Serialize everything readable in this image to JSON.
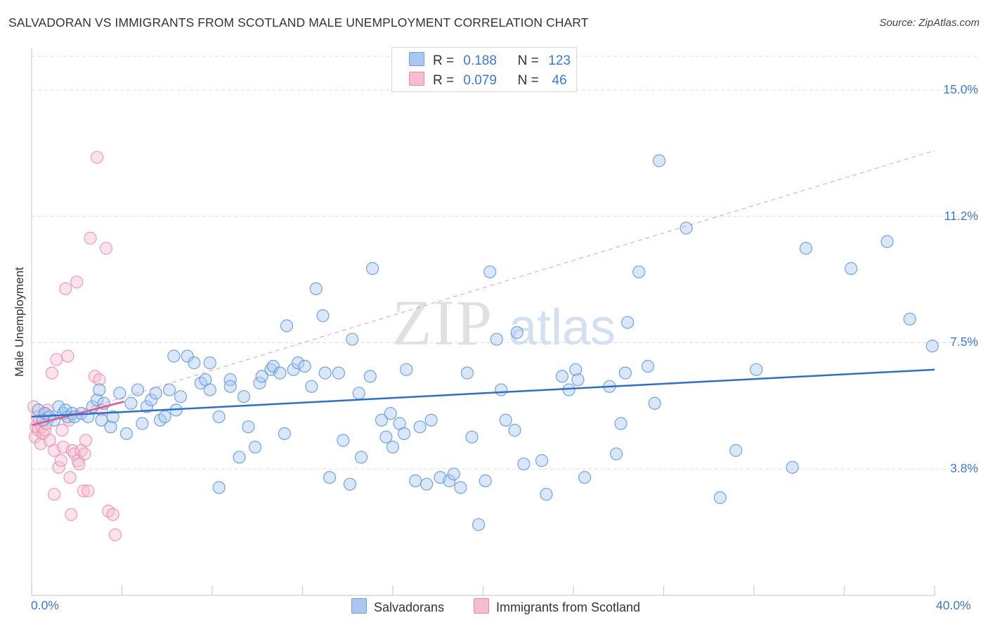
{
  "title": "SALVADORAN VS IMMIGRANTS FROM SCOTLAND MALE UNEMPLOYMENT CORRELATION CHART",
  "source": "Source: ZipAtlas.com",
  "watermark": {
    "zip": "ZIP",
    "atlas": "atlas"
  },
  "legend": {
    "rows": [
      {
        "r_label": "R =",
        "r_value": "0.188",
        "n_label": "N =",
        "n_value": "123",
        "color": "#a8c8f0",
        "border": "#6a9ee0"
      },
      {
        "r_label": "R =",
        "r_value": "0.079",
        "n_label": "N =",
        "n_value": "46",
        "color": "#f6bcd0",
        "border": "#e88aaa"
      }
    ]
  },
  "bottom_legend": {
    "salvadorans": "Salvadorans",
    "scotland": "Immigrants from Scotland"
  },
  "colors": {
    "blue_fill": "#aac9f1",
    "blue_stroke": "#5b95df",
    "blue_line": "#2d6fd0",
    "pink_fill": "#f7bfd2",
    "pink_stroke": "#e887a8",
    "pink_line": "#e0578a",
    "axis_text": "#3a79d8",
    "grid": "#dcdcdc"
  },
  "chart_data": {
    "type": "scatter",
    "title": "SALVADORAN VS IMMIGRANTS FROM SCOTLAND MALE UNEMPLOYMENT CORRELATION CHART",
    "xlabel": "",
    "ylabel": "Male Unemployment",
    "xlim": [
      0,
      40
    ],
    "ylim": [
      0,
      16.0
    ],
    "x_tick_labels": {
      "min": "0.0%",
      "max": "40.0%"
    },
    "y_ticks": [
      {
        "value": 3.75,
        "label": "3.8%"
      },
      {
        "value": 7.5,
        "label": "7.5%"
      },
      {
        "value": 11.25,
        "label": "11.2%"
      },
      {
        "value": 15.0,
        "label": "15.0%"
      }
    ],
    "grid": true,
    "series": [
      {
        "name": "Salvadorans",
        "R": 0.188,
        "N": 123,
        "trend": {
          "x": [
            0,
            40
          ],
          "y": [
            5.3,
            6.7
          ],
          "style": "solid"
        },
        "points": [
          [
            0.3,
            5.5
          ],
          [
            0.5,
            5.2
          ],
          [
            0.6,
            5.4
          ],
          [
            0.8,
            5.3
          ],
          [
            1.0,
            5.2
          ],
          [
            1.2,
            5.6
          ],
          [
            1.4,
            5.4
          ],
          [
            1.5,
            5.5
          ],
          [
            1.6,
            5.3
          ],
          [
            1.8,
            5.4
          ],
          [
            1.9,
            5.3
          ],
          [
            2.2,
            5.4
          ],
          [
            2.5,
            5.3
          ],
          [
            2.7,
            5.6
          ],
          [
            2.9,
            5.8
          ],
          [
            3.0,
            6.1
          ],
          [
            3.2,
            5.7
          ],
          [
            3.1,
            5.2
          ],
          [
            3.5,
            5.0
          ],
          [
            3.6,
            5.3
          ],
          [
            3.9,
            6.0
          ],
          [
            4.2,
            4.8
          ],
          [
            4.4,
            5.7
          ],
          [
            4.7,
            6.1
          ],
          [
            4.9,
            5.1
          ],
          [
            5.1,
            5.6
          ],
          [
            5.3,
            5.8
          ],
          [
            5.5,
            6.0
          ],
          [
            5.7,
            5.2
          ],
          [
            5.9,
            5.3
          ],
          [
            6.1,
            6.1
          ],
          [
            6.4,
            5.5
          ],
          [
            6.6,
            5.9
          ],
          [
            6.3,
            7.1
          ],
          [
            6.9,
            7.1
          ],
          [
            7.2,
            6.9
          ],
          [
            7.5,
            6.3
          ],
          [
            7.7,
            6.4
          ],
          [
            7.9,
            6.1
          ],
          [
            7.9,
            6.9
          ],
          [
            8.3,
            5.3
          ],
          [
            8.3,
            3.2
          ],
          [
            8.8,
            6.4
          ],
          [
            8.8,
            6.2
          ],
          [
            9.2,
            4.1
          ],
          [
            9.4,
            5.9
          ],
          [
            9.6,
            5.0
          ],
          [
            9.9,
            4.4
          ],
          [
            10.1,
            6.3
          ],
          [
            10.2,
            6.5
          ],
          [
            10.6,
            6.7
          ],
          [
            10.7,
            6.8
          ],
          [
            11.0,
            6.6
          ],
          [
            11.2,
            4.8
          ],
          [
            11.3,
            8.0
          ],
          [
            11.6,
            6.7
          ],
          [
            11.8,
            6.9
          ],
          [
            12.1,
            6.8
          ],
          [
            12.4,
            6.2
          ],
          [
            12.6,
            9.1
          ],
          [
            12.9,
            8.3
          ],
          [
            13.0,
            6.6
          ],
          [
            13.2,
            3.5
          ],
          [
            13.6,
            6.6
          ],
          [
            13.8,
            4.6
          ],
          [
            14.1,
            3.3
          ],
          [
            14.2,
            7.6
          ],
          [
            14.5,
            6.0
          ],
          [
            14.6,
            4.1
          ],
          [
            15.0,
            6.5
          ],
          [
            15.1,
            9.7
          ],
          [
            15.5,
            5.2
          ],
          [
            15.7,
            4.7
          ],
          [
            15.9,
            5.4
          ],
          [
            16.0,
            4.4
          ],
          [
            16.3,
            5.1
          ],
          [
            16.5,
            4.8
          ],
          [
            16.6,
            6.7
          ],
          [
            17.0,
            3.4
          ],
          [
            17.2,
            5.0
          ],
          [
            17.5,
            3.3
          ],
          [
            17.7,
            5.2
          ],
          [
            18.1,
            3.5
          ],
          [
            18.5,
            3.4
          ],
          [
            18.7,
            3.6
          ],
          [
            19.0,
            3.2
          ],
          [
            19.3,
            6.6
          ],
          [
            19.5,
            4.7
          ],
          [
            19.8,
            2.1
          ],
          [
            20.1,
            3.4
          ],
          [
            20.3,
            9.6
          ],
          [
            20.6,
            7.6
          ],
          [
            20.8,
            6.1
          ],
          [
            21.0,
            5.2
          ],
          [
            21.4,
            4.9
          ],
          [
            21.5,
            7.8
          ],
          [
            21.8,
            3.9
          ],
          [
            22.6,
            4.0
          ],
          [
            22.8,
            3.0
          ],
          [
            23.5,
            6.5
          ],
          [
            23.8,
            6.1
          ],
          [
            24.1,
            6.7
          ],
          [
            24.2,
            6.4
          ],
          [
            24.5,
            3.5
          ],
          [
            25.6,
            6.2
          ],
          [
            25.9,
            4.2
          ],
          [
            26.1,
            5.1
          ],
          [
            26.3,
            6.6
          ],
          [
            26.4,
            8.1
          ],
          [
            26.9,
            9.6
          ],
          [
            27.3,
            6.8
          ],
          [
            27.6,
            5.7
          ],
          [
            27.8,
            12.9
          ],
          [
            29.0,
            10.9
          ],
          [
            30.5,
            2.9
          ],
          [
            31.2,
            4.3
          ],
          [
            32.1,
            6.7
          ],
          [
            33.7,
            3.8
          ],
          [
            34.3,
            10.3
          ],
          [
            36.3,
            9.7
          ],
          [
            37.9,
            10.5
          ],
          [
            38.9,
            8.2
          ],
          [
            39.9,
            7.4
          ]
        ]
      },
      {
        "name": "Immigrants from Scotland",
        "R": 0.079,
        "N": 46,
        "trend": {
          "x": [
            0,
            4.1
          ],
          "y": [
            5.05,
            5.75
          ],
          "style": "solid"
        },
        "trend_extended": {
          "x": [
            0,
            40
          ],
          "y": [
            5.05,
            13.2
          ],
          "style": "dashed"
        },
        "points": [
          [
            0.1,
            5.6
          ],
          [
            0.15,
            4.7
          ],
          [
            0.2,
            5.0
          ],
          [
            0.25,
            5.3
          ],
          [
            0.3,
            4.9
          ],
          [
            0.35,
            5.2
          ],
          [
            0.4,
            4.5
          ],
          [
            0.45,
            5.0
          ],
          [
            0.5,
            4.8
          ],
          [
            0.55,
            5.4
          ],
          [
            0.6,
            4.9
          ],
          [
            0.65,
            5.1
          ],
          [
            0.7,
            5.5
          ],
          [
            0.8,
            4.6
          ],
          [
            0.9,
            6.6
          ],
          [
            1.0,
            4.3
          ],
          [
            1.1,
            7.0
          ],
          [
            1.2,
            3.8
          ],
          [
            1.3,
            4.0
          ],
          [
            1.35,
            4.9
          ],
          [
            1.4,
            4.4
          ],
          [
            1.5,
            9.1
          ],
          [
            1.6,
            7.1
          ],
          [
            1.65,
            5.2
          ],
          [
            1.7,
            3.5
          ],
          [
            1.75,
            2.4
          ],
          [
            1.8,
            4.3
          ],
          [
            1.9,
            4.2
          ],
          [
            2.0,
            9.3
          ],
          [
            2.05,
            4.0
          ],
          [
            2.1,
            3.9
          ],
          [
            2.2,
            4.3
          ],
          [
            2.3,
            3.1
          ],
          [
            2.35,
            4.2
          ],
          [
            2.4,
            4.6
          ],
          [
            2.5,
            3.1
          ],
          [
            2.6,
            10.6
          ],
          [
            2.8,
            6.5
          ],
          [
            2.9,
            13.0
          ],
          [
            3.0,
            6.4
          ],
          [
            3.1,
            5.5
          ],
          [
            3.3,
            10.3
          ],
          [
            3.4,
            2.5
          ],
          [
            3.6,
            2.4
          ],
          [
            3.7,
            1.8
          ],
          [
            1.0,
            3.0
          ]
        ]
      }
    ]
  }
}
